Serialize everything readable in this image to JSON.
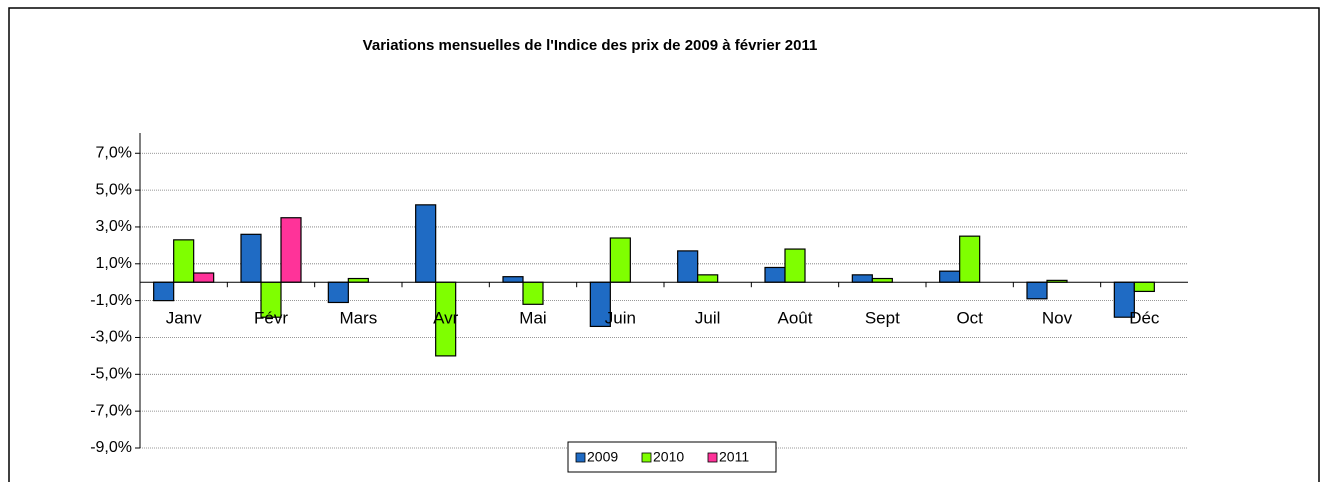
{
  "chart_data": {
    "type": "bar",
    "title": "Variations mensuelles de l'Indice des prix  de 2009 à février 2011",
    "categories": [
      "Janv",
      "Févr",
      "Mars",
      "Avr",
      "Mai",
      "Juin",
      "Juil",
      "Août",
      "Sept",
      "Oct",
      "Nov",
      "Déc"
    ],
    "series": [
      {
        "name": "2009",
        "color": "#1f6bc4",
        "values": [
          -1.0,
          2.6,
          -1.1,
          4.2,
          0.3,
          -2.4,
          1.7,
          0.8,
          0.4,
          0.6,
          -0.9,
          -1.9
        ]
      },
      {
        "name": "2010",
        "color": "#7fff00",
        "values": [
          2.3,
          -1.9,
          0.2,
          -4.0,
          -1.2,
          2.4,
          0.4,
          1.8,
          0.2,
          2.5,
          0.1,
          -0.5
        ]
      },
      {
        "name": "2011",
        "color": "#ff3399",
        "values": [
          0.5,
          3.5,
          null,
          null,
          null,
          null,
          null,
          null,
          null,
          null,
          null,
          null
        ]
      }
    ],
    "ylim": [
      -9,
      8.1
    ],
    "yticks": [
      {
        "value": 7,
        "label": "7,0%"
      },
      {
        "value": 5,
        "label": "5,0%"
      },
      {
        "value": 3,
        "label": "3,0%"
      },
      {
        "value": 1,
        "label": "1,0%"
      },
      {
        "value": -1,
        "label": "-1,0%"
      },
      {
        "value": -3,
        "label": "-3,0%"
      },
      {
        "value": -5,
        "label": "-5,0%"
      },
      {
        "value": -7,
        "label": "-7,0%"
      },
      {
        "value": -9,
        "label": "-9,0%"
      }
    ],
    "grid": true,
    "legend": "bottom"
  }
}
